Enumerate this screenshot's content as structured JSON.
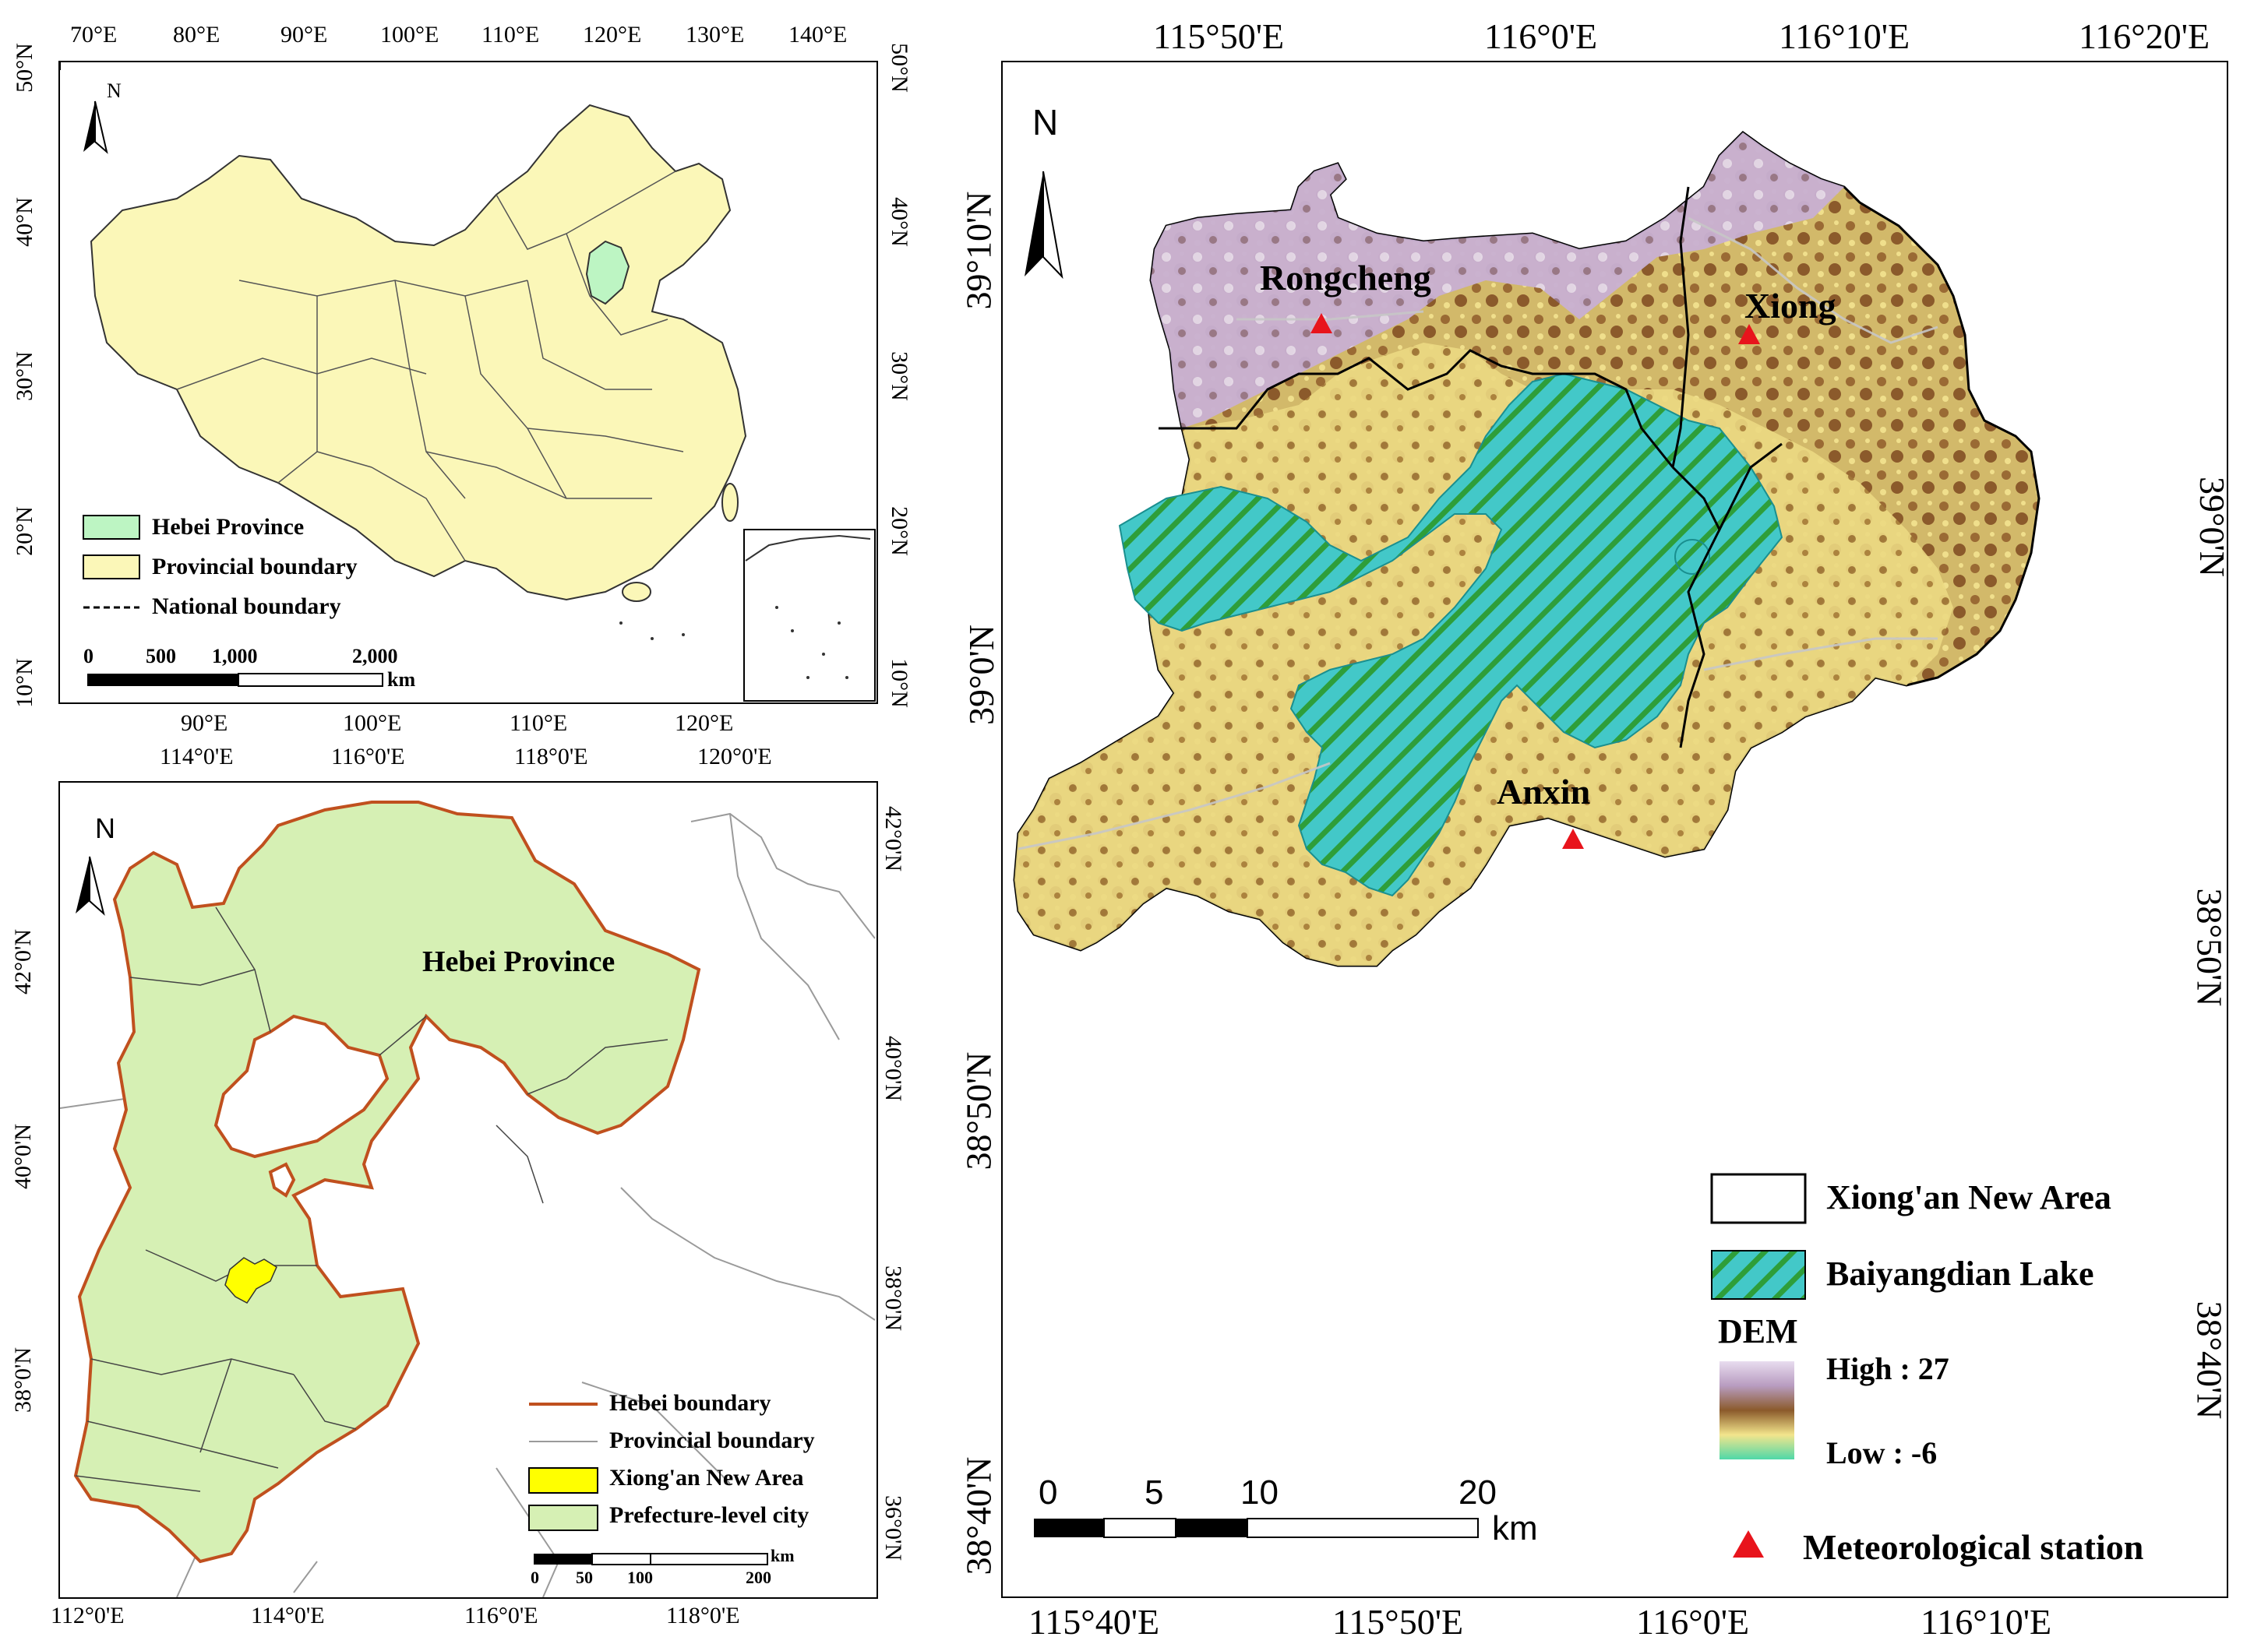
{
  "panel_a": {
    "north_label": "N",
    "top_ticks": [
      "70°E",
      "80°E",
      "90°E",
      "100°E",
      "110°E",
      "120°E",
      "130°E",
      "140°E"
    ],
    "bottom_ticks": [
      "90°E",
      "100°E",
      "110°E",
      "120°E"
    ],
    "left_ticks": [
      "50°N",
      "40°N",
      "30°N",
      "20°N",
      "10°N"
    ],
    "right_ticks": [
      "50°N",
      "40°N",
      "30°N",
      "20°N",
      "10°N"
    ],
    "legend": {
      "hebei": "Hebei Province",
      "provincial": "Provincial boundary",
      "national": "National boundary"
    },
    "scale_labels": [
      "0",
      "500",
      "1,000",
      "2,000"
    ],
    "scale_unit": "km",
    "colors": {
      "land": "#fbf7b8",
      "hebei": "#bdf5c3",
      "boundary": "#333333"
    }
  },
  "panel_b": {
    "north_label": "N",
    "top_ticks": [
      "114°0'E",
      "116°0'E",
      "118°0'E",
      "120°0'E"
    ],
    "bottom_ticks": [
      "112°0'E",
      "114°0'E",
      "116°0'E",
      "118°0'E"
    ],
    "left_ticks": [
      "42°0'N",
      "40°0'N",
      "38°0'N"
    ],
    "right_ticks": [
      "42°0'N",
      "40°0'N",
      "38°0'N",
      "36°0'N"
    ],
    "region_label": "Hebei Province",
    "legend": {
      "hebei_boundary": "Hebei boundary",
      "provincial_boundary": "Provincial boundary",
      "xiongan": "Xiong'an New Area",
      "prefecture": "Prefecture-level city"
    },
    "scale_labels": [
      "0",
      "50",
      "100",
      "200"
    ],
    "scale_unit": "km",
    "colors": {
      "city": "#d6f0b4",
      "hebei_boundary": "#c0501e",
      "xiongan": "#ffff00"
    }
  },
  "panel_c": {
    "north_label": "N",
    "top_ticks": [
      "115°50'E",
      "116°0'E",
      "116°10'E",
      "116°20'E"
    ],
    "bottom_ticks": [
      "115°40'E",
      "115°50'E",
      "116°0'E",
      "116°10'E"
    ],
    "left_ticks": [
      "39°10'N",
      "39°0'N",
      "38°50'N",
      "38°40'N"
    ],
    "right_ticks": [
      "39°0'N",
      "38°50'N",
      "38°40'N"
    ],
    "stations": [
      "Rongcheng",
      "Xiong",
      "Anxin"
    ],
    "legend": {
      "xiongan": "Xiong'an New Area",
      "lake": "Baiyangdian Lake",
      "dem_title": "DEM",
      "dem_high": "High : 27",
      "dem_low": "Low : -6",
      "station": "Meteorological station"
    },
    "scale_labels": [
      "0",
      "5",
      "10",
      "20"
    ],
    "scale_unit": "km",
    "colors": {
      "dem_high": "#c9b4d6",
      "dem_mid": "#8b5a2b",
      "dem_low": "#f3e58c",
      "lake": "#43c8c8",
      "lake_stripe": "#2e9e3a",
      "station": "#e8141c"
    }
  }
}
